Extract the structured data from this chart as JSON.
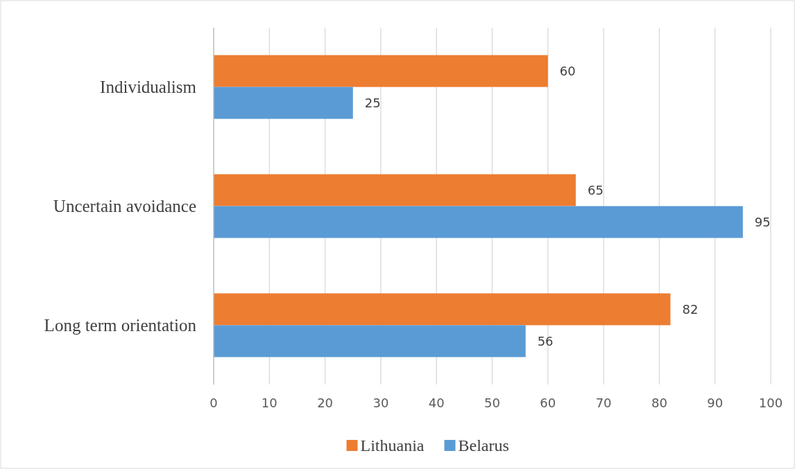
{
  "chart_data": {
    "type": "bar",
    "orientation": "horizontal",
    "categories": [
      "Individualism",
      "Uncertain avoidance",
      "Long term orientation"
    ],
    "series": [
      {
        "name": "Lithuania",
        "color": "#ed7d31",
        "values": [
          60,
          65,
          82
        ]
      },
      {
        "name": "Belarus",
        "color": "#5b9bd5",
        "values": [
          25,
          95,
          56
        ]
      }
    ],
    "xlim": [
      0,
      100
    ],
    "xticks": [
      0,
      10,
      20,
      30,
      40,
      50,
      60,
      70,
      80,
      90,
      100
    ],
    "grid": "x",
    "data_labels": true,
    "legend": "bottom"
  }
}
